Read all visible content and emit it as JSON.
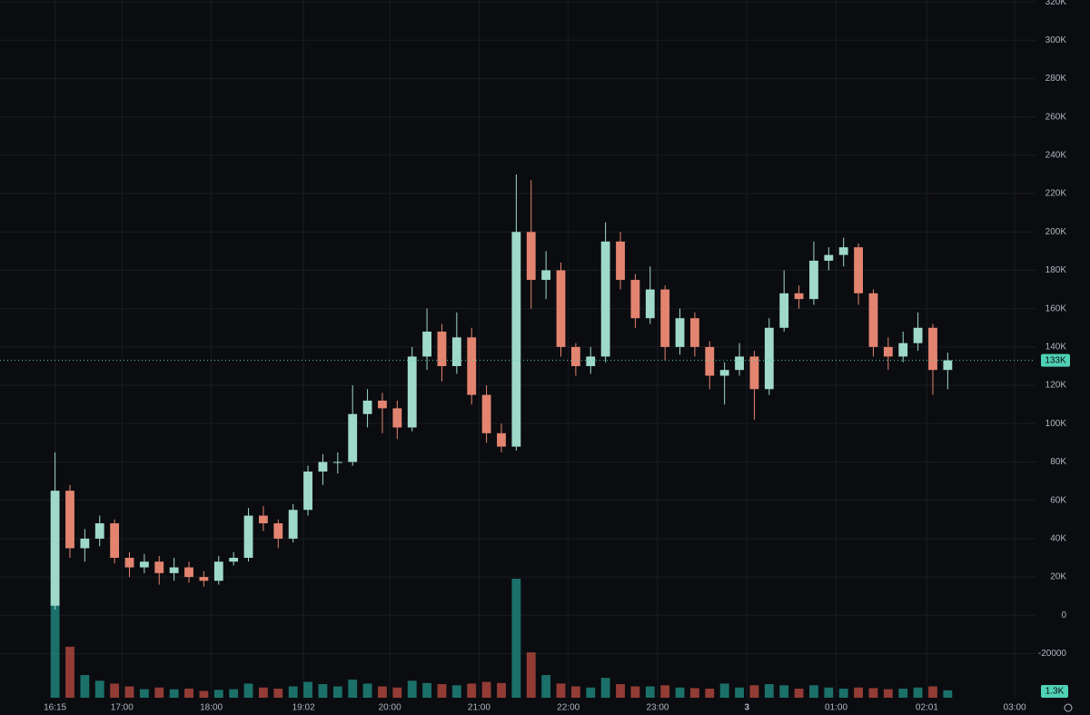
{
  "chart_data": {
    "type": "candlestick",
    "x": [
      975,
      985,
      995,
      1005,
      1015,
      1025,
      1035,
      1045,
      1055,
      1065,
      1075,
      1085,
      1095,
      1105,
      1115,
      1125,
      1135,
      1145,
      1155,
      1165,
      1175,
      1185,
      1195,
      1205,
      1215,
      1225,
      1235,
      1245,
      1255,
      1265,
      1275,
      1285,
      1295,
      1305,
      1315,
      1325,
      1335,
      1345,
      1355,
      1365,
      1375,
      1385,
      1395,
      1405,
      1415,
      1425,
      1435,
      1445,
      1455,
      1465,
      1475,
      1485,
      1495,
      1505,
      1515,
      1525,
      1535,
      1545,
      1555,
      1565,
      1575
    ],
    "open": [
      5000,
      65000,
      35000,
      40000,
      48000,
      30000,
      25000,
      28000,
      22000,
      25000,
      20000,
      18000,
      28000,
      30000,
      52000,
      48000,
      40000,
      55000,
      75000,
      80000,
      80000,
      105000,
      112000,
      108000,
      98000,
      135000,
      148000,
      130000,
      145000,
      115000,
      95000,
      88000,
      200000,
      175000,
      180000,
      140000,
      130000,
      135000,
      195000,
      175000,
      155000,
      170000,
      140000,
      155000,
      140000,
      125000,
      128000,
      135000,
      118000,
      150000,
      168000,
      165000,
      185000,
      188000,
      192000,
      168000,
      140000,
      135000,
      142000,
      150000,
      128000
    ],
    "high": [
      85000,
      68000,
      45000,
      52000,
      50000,
      33000,
      32000,
      31000,
      30000,
      28000,
      23000,
      31000,
      33000,
      56000,
      57000,
      50000,
      58000,
      78000,
      84000,
      85000,
      120000,
      118000,
      116000,
      112000,
      140000,
      160000,
      152000,
      158000,
      150000,
      120000,
      100000,
      230000,
      227000,
      190000,
      184000,
      142000,
      140000,
      205000,
      200000,
      178000,
      182000,
      172000,
      160000,
      158000,
      143000,
      132000,
      142000,
      138000,
      155000,
      180000,
      172000,
      195000,
      192000,
      197000,
      194000,
      170000,
      145000,
      148000,
      158000,
      152000,
      137000
    ],
    "low": [
      3000,
      30000,
      28000,
      36000,
      27000,
      20000,
      22000,
      16000,
      18000,
      17000,
      15000,
      16000,
      26000,
      28000,
      44000,
      35000,
      38000,
      52000,
      68000,
      74000,
      78000,
      98000,
      95000,
      92000,
      96000,
      128000,
      122000,
      126000,
      110000,
      90000,
      85000,
      86000,
      160000,
      165000,
      135000,
      125000,
      126000,
      132000,
      170000,
      150000,
      152000,
      133000,
      136000,
      135000,
      118000,
      110000,
      125000,
      102000,
      115000,
      148000,
      160000,
      162000,
      180000,
      182000,
      162000,
      135000,
      128000,
      132000,
      138000,
      115000,
      118000
    ],
    "close": [
      65000,
      35000,
      40000,
      48000,
      30000,
      25000,
      28000,
      22000,
      25000,
      20000,
      18000,
      28000,
      30000,
      52000,
      48000,
      40000,
      55000,
      75000,
      80000,
      80000,
      105000,
      112000,
      108000,
      98000,
      135000,
      148000,
      130000,
      145000,
      115000,
      95000,
      88000,
      200000,
      175000,
      180000,
      140000,
      130000,
      135000,
      195000,
      175000,
      155000,
      170000,
      140000,
      155000,
      140000,
      125000,
      128000,
      135000,
      118000,
      150000,
      168000,
      165000,
      185000,
      188000,
      192000,
      168000,
      140000,
      135000,
      142000,
      150000,
      128000,
      133000
    ],
    "volume": [
      17000,
      9000,
      4000,
      3000,
      2500,
      2000,
      1500,
      1800,
      1500,
      1600,
      1200,
      1400,
      1500,
      2500,
      1800,
      1600,
      2000,
      2800,
      2400,
      2000,
      3200,
      2500,
      2000,
      1800,
      3000,
      2600,
      2400,
      2200,
      2500,
      2800,
      2600,
      21000,
      8000,
      4000,
      2500,
      2000,
      1800,
      3500,
      2400,
      2000,
      2000,
      2200,
      1800,
      1700,
      1600,
      2500,
      1800,
      2200,
      2400,
      2200,
      1600,
      2200,
      1800,
      1600,
      1800,
      1700,
      1500,
      1600,
      1800,
      2000,
      1300
    ],
    "up_color": "#9ed9c9",
    "down_color": "#e2846f",
    "volume_up_color": "#1f8a7f",
    "volume_down_color": "#b4483f",
    "xlim": [
      938,
      1634
    ],
    "xticks": [
      {
        "value": 975,
        "label": "16:15"
      },
      {
        "value": 1020,
        "label": "17:00"
      },
      {
        "value": 1080,
        "label": "18:00"
      },
      {
        "value": 1142,
        "label": "19:02"
      },
      {
        "value": 1200,
        "label": "20:00"
      },
      {
        "value": 1260,
        "label": "21:00"
      },
      {
        "value": 1320,
        "label": "22:00"
      },
      {
        "value": 1380,
        "label": "23:00"
      },
      {
        "value": 1440,
        "label": "3"
      },
      {
        "value": 1500,
        "label": "01:00"
      },
      {
        "value": 1561,
        "label": "02:01"
      },
      {
        "value": 1620,
        "label": "03:00"
      }
    ],
    "ylim": [
      -43000,
      321000
    ],
    "yticks": [
      {
        "value": 320000,
        "label": "320K"
      },
      {
        "value": 300000,
        "label": "300K"
      },
      {
        "value": 280000,
        "label": "280K"
      },
      {
        "value": 260000,
        "label": "260K"
      },
      {
        "value": 240000,
        "label": "240K"
      },
      {
        "value": 220000,
        "label": "220K"
      },
      {
        "value": 200000,
        "label": "200K"
      },
      {
        "value": 180000,
        "label": "180K"
      },
      {
        "value": 160000,
        "label": "160K"
      },
      {
        "value": 140000,
        "label": "140K"
      },
      {
        "value": 120000,
        "label": "120K"
      },
      {
        "value": 100000,
        "label": "100K"
      },
      {
        "value": 80000,
        "label": "80K"
      },
      {
        "value": 60000,
        "label": "60K"
      },
      {
        "value": 40000,
        "label": "40K"
      },
      {
        "value": 20000,
        "label": "20K"
      },
      0,
      -20000
    ],
    "grid": true,
    "last_price": {
      "value": 133000,
      "label": "133K"
    },
    "last_volume": {
      "value": 1300,
      "label": "1.3K"
    },
    "label_color": "#4fd1b5"
  }
}
